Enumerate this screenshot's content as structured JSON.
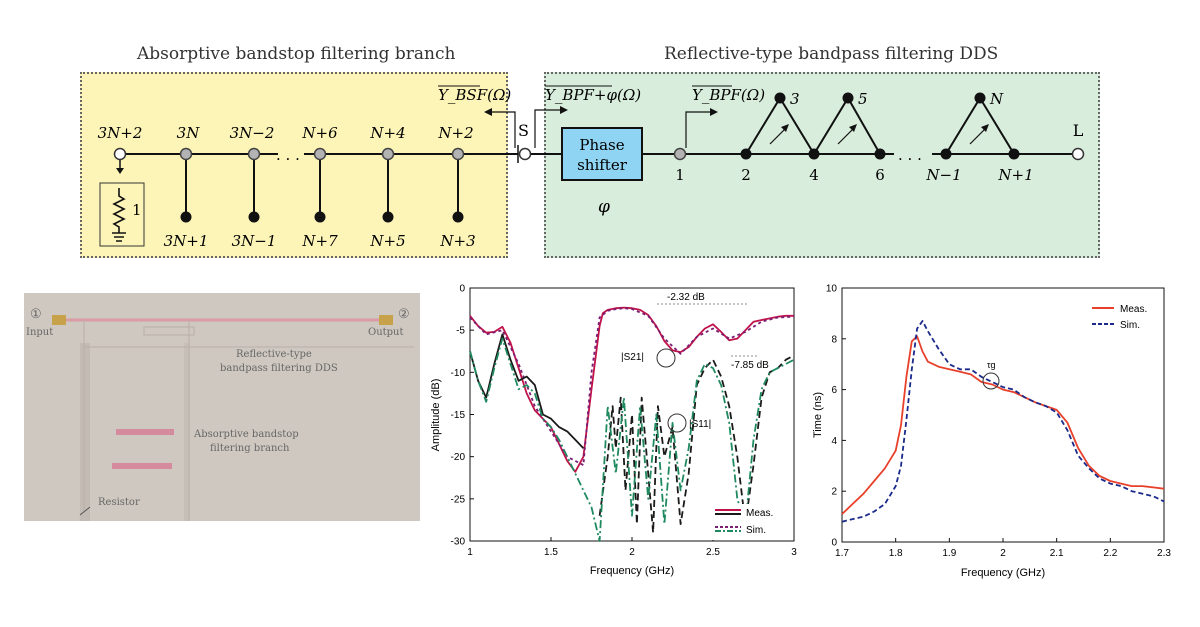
{
  "schematic": {
    "left_title": "Absorptive bandstop filtering branch",
    "right_title": "Reflective-type bandpass filtering DDS",
    "admittance_bsf": "Y_BSF(Ω)",
    "admittance_bpf_phi": "Y_BPF+φ(Ω)",
    "admittance_bpf": "Y_BPF(Ω)",
    "port_s": "S",
    "port_l": "L",
    "phase_shifter": [
      "Phase",
      "shifter"
    ],
    "phase_symbol": "φ",
    "resistor_label": "1",
    "bsf_top_nodes": [
      "3N+2",
      "3N",
      "3N−2",
      "N+6",
      "N+4",
      "N+2"
    ],
    "bsf_bottom_nodes": [
      "3N+1",
      "3N−1",
      "N+7",
      "N+5",
      "N+3"
    ],
    "dots": "· · ·",
    "bpf_bottom_nodes": [
      "1",
      "2",
      "4",
      "6",
      "N−1",
      "N+1"
    ],
    "bpf_top_nodes": [
      "3",
      "5",
      "N"
    ],
    "colors": {
      "left_panel": "#fdf4b8",
      "right_panel": "#d8eddc",
      "phase_box": "#8fd4f2"
    }
  },
  "photo": {
    "labels": {
      "input_port": "①",
      "input": "Input",
      "output_port": "②",
      "output": "Output",
      "dds": [
        "Reflective-type",
        "bandpass filtering DDS"
      ],
      "bsf": [
        "Absorptive bandstop",
        "filtering branch"
      ],
      "resistor": "Resistor"
    }
  },
  "chart_data": [
    {
      "type": "line",
      "xlabel": "Frequency (GHz)",
      "ylabel": "Amplitude (dB)",
      "xlim": [
        1,
        3
      ],
      "ylim": [
        -30,
        0
      ],
      "xticks": [
        "1",
        "1.5",
        "2",
        "2.5",
        "3"
      ],
      "yticks": [
        "0",
        "-5",
        "-10",
        "-15",
        "-20",
        "-25",
        "-30"
      ],
      "legend": [
        "Meas.",
        "Sim."
      ],
      "annotations": {
        "peak": "-2.32 dB",
        "level": "-7.85 dB",
        "s21": "|S21|",
        "s11": "|S11|"
      },
      "series": [
        {
          "role": "S21 meas",
          "color": "#c0134a",
          "dash": "",
          "x": [
            1.0,
            1.05,
            1.1,
            1.15,
            1.2,
            1.25,
            1.3,
            1.35,
            1.4,
            1.45,
            1.5,
            1.55,
            1.6,
            1.65,
            1.7,
            1.75,
            1.8,
            1.82,
            1.85,
            1.9,
            1.95,
            2.0,
            2.05,
            2.1,
            2.15,
            2.2,
            2.25,
            2.3,
            2.35,
            2.4,
            2.45,
            2.5,
            2.55,
            2.6,
            2.65,
            2.7,
            2.75,
            2.8,
            2.85,
            2.9,
            2.95,
            3.0
          ],
          "y": [
            -3.3,
            -4.5,
            -5.3,
            -5.2,
            -4.6,
            -6.5,
            -9.5,
            -12.5,
            -14.5,
            -15.5,
            -16.5,
            -18.5,
            -20.5,
            -21.8,
            -20.0,
            -12.0,
            -4.5,
            -3.0,
            -2.6,
            -2.4,
            -2.32,
            -2.4,
            -2.6,
            -3.2,
            -4.5,
            -6.3,
            -7.4,
            -7.6,
            -7.0,
            -5.8,
            -4.8,
            -4.3,
            -5.2,
            -6.2,
            -6.0,
            -5.0,
            -4.0,
            -3.8,
            -3.6,
            -3.4,
            -3.3,
            -3.3
          ]
        },
        {
          "role": "S21 sim",
          "color": "#7a1e74",
          "dash": "3 3",
          "x": [
            1.0,
            1.1,
            1.2,
            1.3,
            1.4,
            1.5,
            1.6,
            1.7,
            1.75,
            1.8,
            1.85,
            1.9,
            1.95,
            2.0,
            2.1,
            2.2,
            2.3,
            2.4,
            2.5,
            2.6,
            2.7,
            2.8,
            2.9,
            3.0
          ],
          "y": [
            -3.5,
            -5.5,
            -5.0,
            -9.0,
            -14.0,
            -17.0,
            -20.0,
            -21.0,
            -10.0,
            -3.5,
            -2.7,
            -2.5,
            -2.4,
            -2.5,
            -3.3,
            -6.0,
            -7.8,
            -5.8,
            -4.8,
            -6.0,
            -5.2,
            -4.0,
            -3.5,
            -3.4
          ]
        },
        {
          "role": "S11 meas",
          "color": "#1a1a1a",
          "dash": "",
          "x": [
            1.0,
            1.05,
            1.1,
            1.15,
            1.2,
            1.25,
            1.3,
            1.35,
            1.4,
            1.45,
            1.5,
            1.55,
            1.6,
            1.65,
            1.7
          ],
          "y": [
            -7.5,
            -11.0,
            -13.0,
            -9.0,
            -5.5,
            -8.5,
            -11.0,
            -10.5,
            -11.5,
            -15.0,
            -15.5,
            -16.5,
            -17.0,
            -18.0,
            -19.0
          ]
        },
        {
          "role": "S11 meas dashed",
          "color": "#1a1a1a",
          "dash": "7 4",
          "x": [
            1.8,
            1.85,
            1.88,
            1.9,
            1.93,
            1.96,
            2.0,
            2.03,
            2.06,
            2.1,
            2.13,
            2.16,
            2.2,
            2.25,
            2.3,
            2.35,
            2.4,
            2.45,
            2.5,
            2.55,
            2.6,
            2.65,
            2.7,
            2.75,
            2.8,
            2.85,
            2.9,
            2.95,
            3.0
          ],
          "y": [
            -27.0,
            -20.0,
            -14.0,
            -19.0,
            -13.0,
            -24.0,
            -15.0,
            -28.0,
            -13.0,
            -22.0,
            -29.0,
            -14.0,
            -20.0,
            -16.5,
            -28.0,
            -22.0,
            -11.5,
            -9.5,
            -8.5,
            -10.5,
            -14.0,
            -20.0,
            -28.0,
            -21.0,
            -13.0,
            -10.0,
            -9.5,
            -8.5,
            -8.0
          ]
        },
        {
          "role": "S11 sim",
          "color": "#1f8a60",
          "dash": "8 3 2 3",
          "x": [
            1.0,
            1.05,
            1.1,
            1.15,
            1.2,
            1.25,
            1.3,
            1.35,
            1.4,
            1.45,
            1.5,
            1.55,
            1.6,
            1.65,
            1.7,
            1.75,
            1.8,
            1.85,
            1.9,
            1.95,
            2.0,
            2.05,
            2.1,
            2.15,
            2.2,
            2.25,
            2.3,
            2.35,
            2.4,
            2.45,
            2.5,
            2.55,
            2.6,
            2.65,
            2.7,
            2.75,
            2.8,
            2.85,
            2.9,
            2.95,
            3.0
          ],
          "y": [
            -7.5,
            -11.0,
            -13.5,
            -9.5,
            -6.0,
            -9.0,
            -12.0,
            -11.5,
            -12.5,
            -15.5,
            -16.5,
            -18.0,
            -20.0,
            -22.0,
            -24.0,
            -26.0,
            -30.0,
            -14.0,
            -22.0,
            -13.0,
            -27.0,
            -14.0,
            -25.0,
            -15.0,
            -28.0,
            -16.0,
            -24.0,
            -19.0,
            -11.0,
            -9.0,
            -9.5,
            -11.5,
            -16.0,
            -25.0,
            -28.0,
            -18.0,
            -12.0,
            -10.0,
            -9.5,
            -9.0,
            -8.5
          ]
        }
      ]
    },
    {
      "type": "line",
      "xlabel": "Frequency (GHz)",
      "ylabel": "Time (ns)",
      "xlim": [
        1.7,
        2.3
      ],
      "ylim": [
        0,
        10
      ],
      "xticks": [
        "1.7",
        "1.8",
        "1.9",
        "2",
        "2.1",
        "2.2",
        "2.3"
      ],
      "yticks": [
        "10",
        "8",
        "6",
        "4",
        "2",
        "0"
      ],
      "legend": [
        "Meas.",
        "Sim."
      ],
      "annotations": {
        "tau": "τg"
      },
      "series": [
        {
          "name": "Meas.",
          "color": "#e8412b",
          "dash": "",
          "x": [
            1.7,
            1.72,
            1.74,
            1.76,
            1.78,
            1.8,
            1.81,
            1.82,
            1.83,
            1.84,
            1.85,
            1.86,
            1.88,
            1.9,
            1.92,
            1.94,
            1.96,
            1.98,
            2.0,
            2.02,
            2.04,
            2.06,
            2.08,
            2.1,
            2.12,
            2.14,
            2.16,
            2.18,
            2.2,
            2.22,
            2.24,
            2.26,
            2.28,
            2.3
          ],
          "y": [
            1.1,
            1.5,
            1.9,
            2.4,
            2.9,
            3.6,
            4.6,
            6.5,
            7.9,
            8.1,
            7.5,
            7.1,
            6.9,
            6.8,
            6.7,
            6.6,
            6.3,
            6.2,
            6.0,
            5.9,
            5.7,
            5.5,
            5.35,
            5.2,
            4.7,
            3.7,
            3.0,
            2.6,
            2.4,
            2.3,
            2.2,
            2.2,
            2.15,
            2.1
          ]
        },
        {
          "name": "Sim.",
          "color": "#1a2a8a",
          "dash": "5 3",
          "x": [
            1.7,
            1.72,
            1.74,
            1.76,
            1.78,
            1.8,
            1.81,
            1.82,
            1.83,
            1.84,
            1.85,
            1.86,
            1.88,
            1.9,
            1.92,
            1.94,
            1.96,
            1.98,
            2.0,
            2.02,
            2.04,
            2.06,
            2.08,
            2.1,
            2.12,
            2.14,
            2.16,
            2.18,
            2.2,
            2.22,
            2.24,
            2.26,
            2.28,
            2.3
          ],
          "y": [
            0.8,
            0.9,
            1.0,
            1.2,
            1.5,
            2.2,
            3.0,
            4.8,
            6.8,
            8.4,
            8.7,
            8.3,
            7.6,
            7.0,
            6.8,
            6.8,
            6.5,
            6.3,
            6.1,
            6.0,
            5.7,
            5.5,
            5.35,
            5.1,
            4.4,
            3.4,
            2.9,
            2.5,
            2.3,
            2.2,
            2.0,
            1.9,
            1.8,
            1.6
          ]
        }
      ]
    }
  ]
}
